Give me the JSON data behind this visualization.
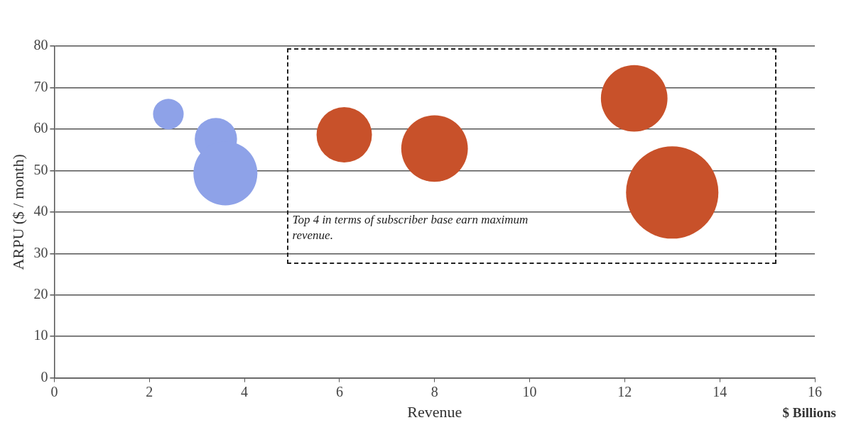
{
  "chart_data": {
    "type": "bubble",
    "xlabel": "Revenue",
    "ylabel": "ARPU ($ / month)",
    "annotations": [
      "Top 4 in terms of subscriber base earn maximum revenue.",
      "$ Billions"
    ],
    "series": [
      {
        "color": "#8ea2e8",
        "x": [
          2.4,
          3.4,
          3.6
        ],
        "values": [
          63.6,
          57.6,
          49.3
        ],
        "sizes": [
          0.11,
          0.21,
          0.48
        ]
      },
      {
        "color": "#c8512a",
        "x": [
          6.1,
          8.0,
          12.2,
          13.0
        ],
        "values": [
          58.6,
          55.3,
          67.4,
          44.7
        ],
        "sizes": [
          0.36,
          0.52,
          0.52,
          1
        ]
      }
    ],
    "xlim": [
      0,
      16
    ],
    "xticks": [
      0,
      2,
      4,
      6,
      8,
      10,
      12,
      14,
      16
    ],
    "ylim": [
      0,
      80
    ],
    "yticks": [
      0,
      10,
      20,
      30,
      40,
      50,
      60,
      70,
      80
    ],
    "grid": "y",
    "legend": false
  }
}
